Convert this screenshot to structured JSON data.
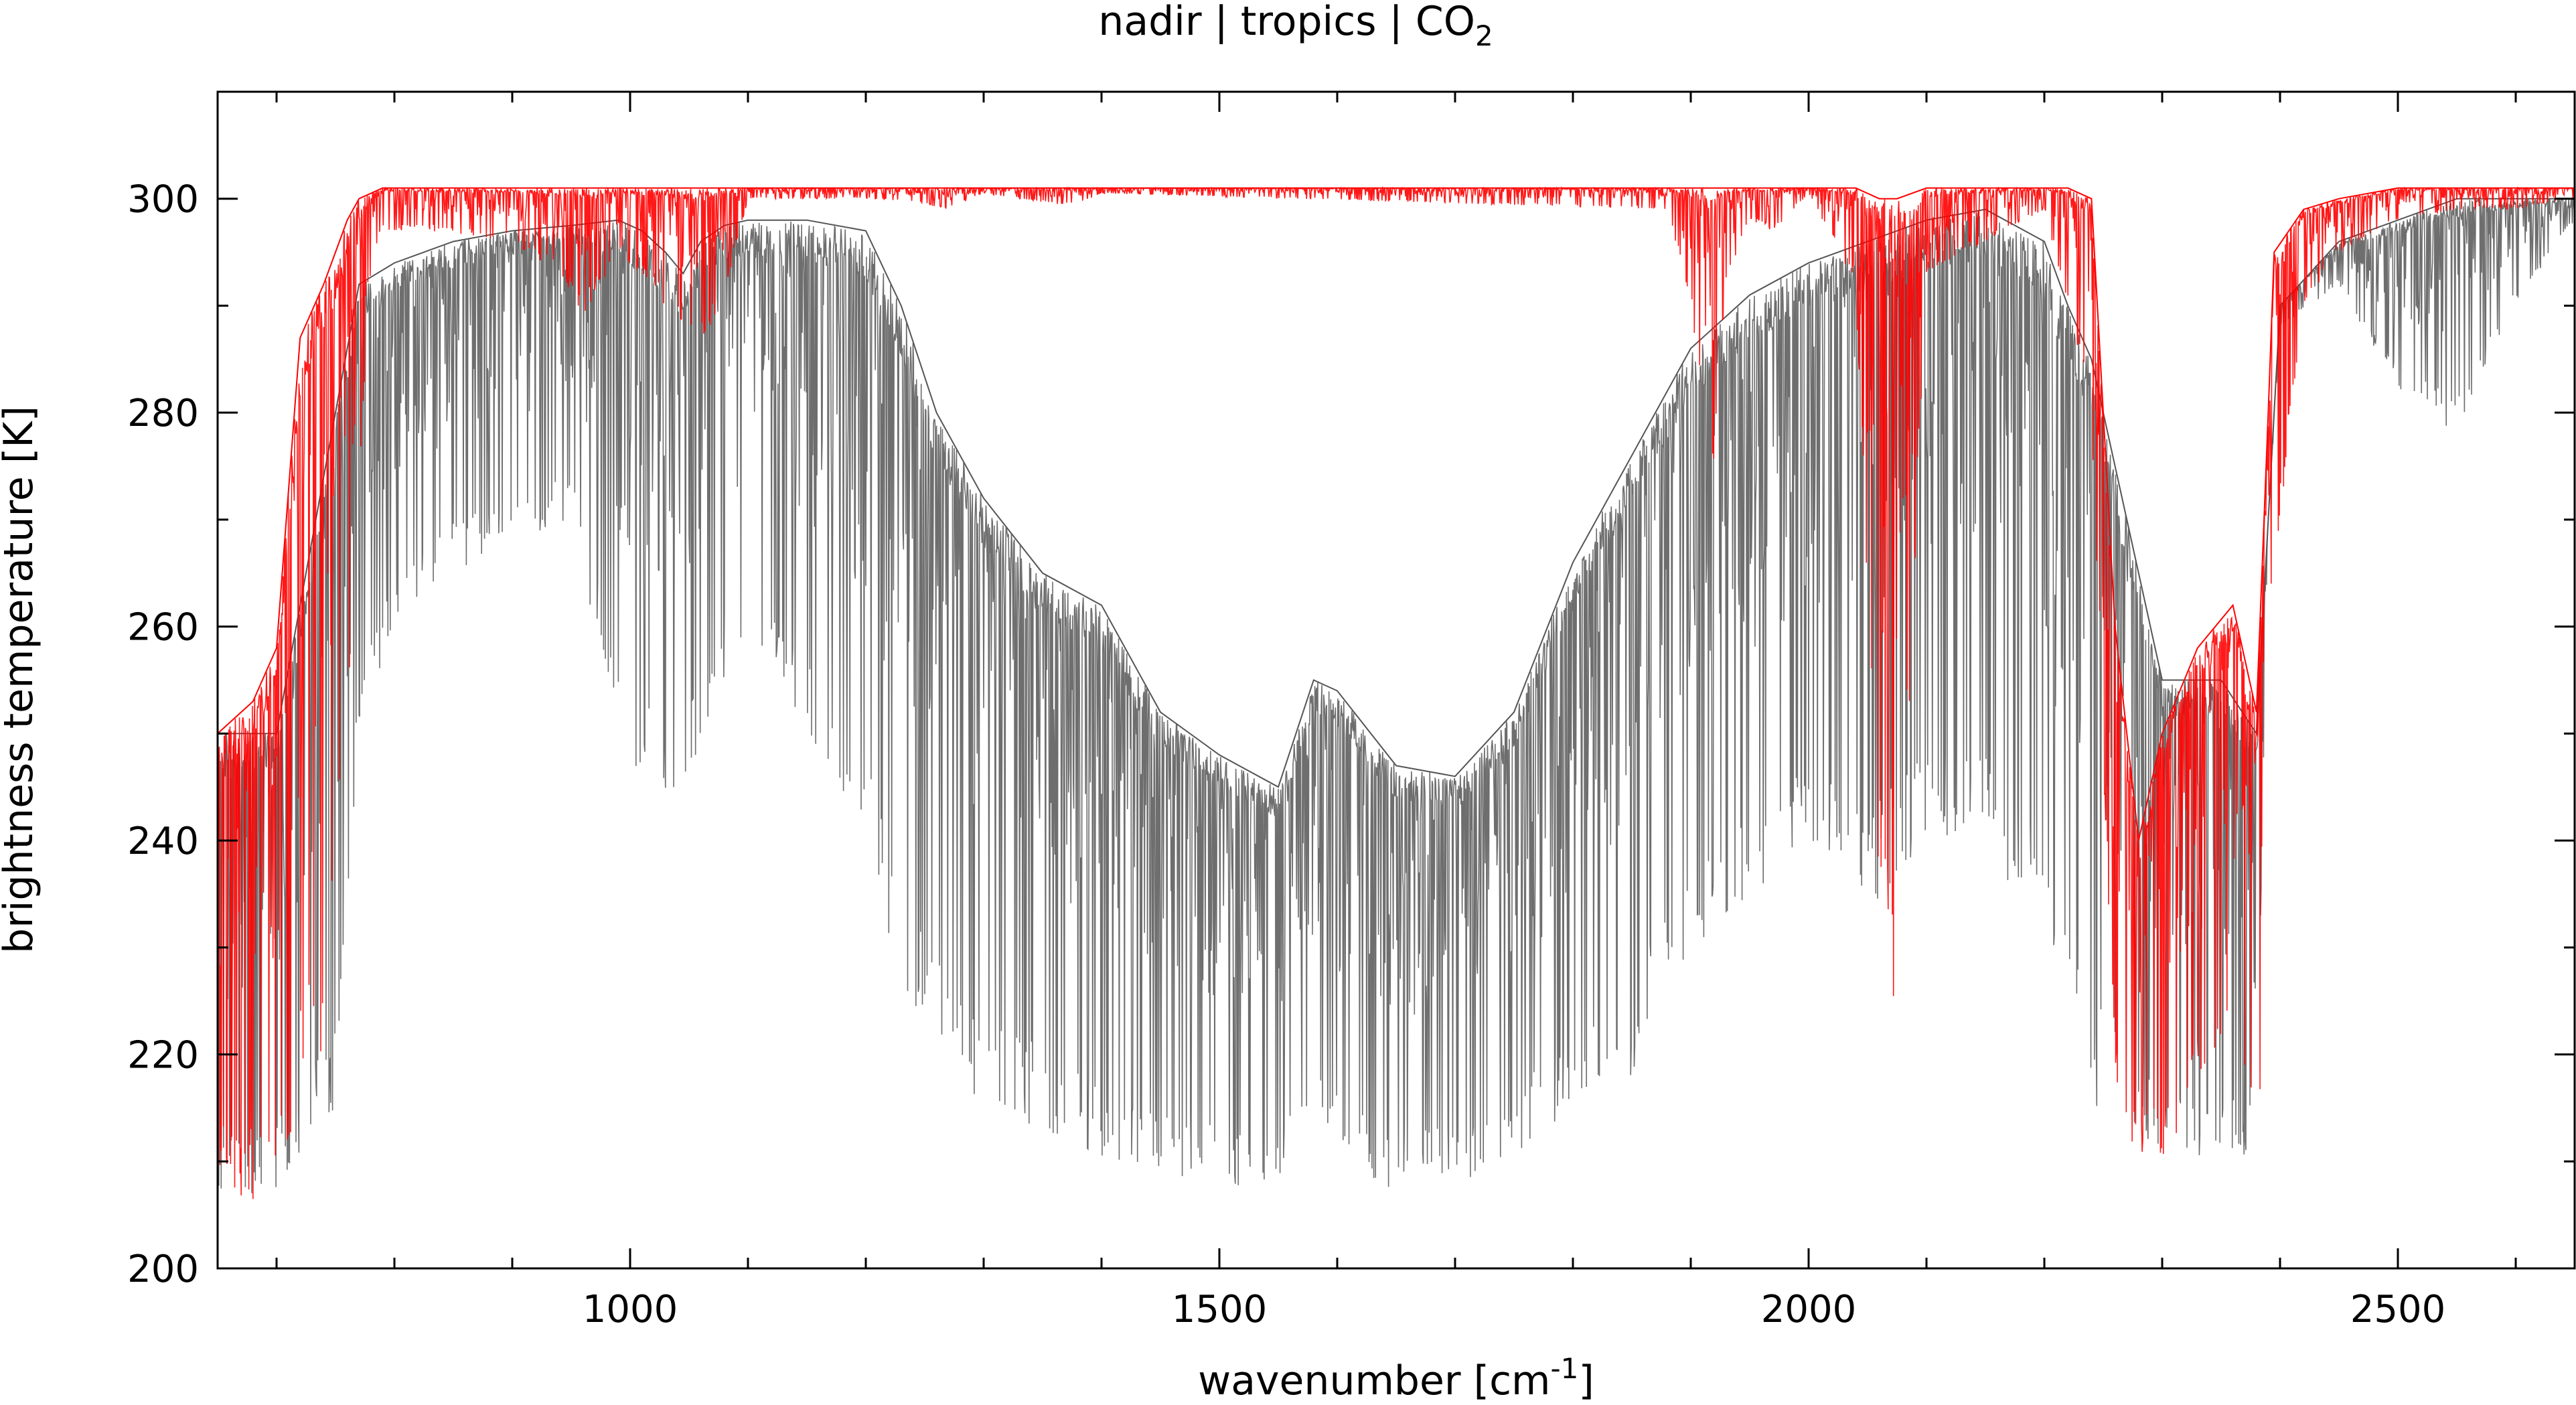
{
  "chart_data": {
    "type": "line",
    "title": "nadir | tropics | CO",
    "title_subscript": "2",
    "xlabel": "wavenumber [cm",
    "xlabel_superscript": "-1",
    "xlabel_suffix": "]",
    "ylabel": "brightness temperature [K]",
    "xlim": [
      650,
      2650
    ],
    "ylim": [
      200,
      310
    ],
    "xticks": [
      1000,
      1500,
      2000,
      2500
    ],
    "yticks": [
      200,
      220,
      240,
      260,
      280,
      300
    ],
    "grid": false,
    "legend": "none",
    "series": [
      {
        "color": "#555555",
        "style": "dense absorption spectrum",
        "x": [
          650,
          700,
          750,
          770,
          800,
          850,
          900,
          950,
          990,
          1010,
          1030,
          1045,
          1060,
          1080,
          1100,
          1150,
          1200,
          1230,
          1260,
          1300,
          1350,
          1400,
          1450,
          1500,
          1550,
          1580,
          1600,
          1650,
          1700,
          1750,
          1800,
          1850,
          1900,
          1950,
          2000,
          2050,
          2100,
          2150,
          2200,
          2220,
          2240,
          2300,
          2350,
          2380,
          2390,
          2400,
          2450,
          2500,
          2550,
          2600,
          2650
        ],
        "upper": [
          250,
          250,
          280,
          292,
          294,
          296,
          297,
          297.5,
          298,
          297,
          295,
          293,
          296,
          297.5,
          298,
          298,
          297,
          290,
          280,
          272,
          265,
          262,
          252,
          248,
          245,
          255,
          254,
          247,
          246,
          252,
          266,
          276,
          286,
          291,
          294,
          296,
          298,
          299,
          296,
          290,
          285,
          255,
          255,
          250,
          270,
          290,
          296,
          298,
          300,
          300,
          300
        ],
        "lower": [
          207,
          207,
          215,
          250,
          260,
          265,
          268,
          270,
          250,
          245,
          244,
          244,
          248,
          255,
          257,
          250,
          240,
          225,
          220,
          215,
          213,
          210,
          209,
          208,
          207,
          212,
          210,
          207,
          208,
          210,
          215,
          218,
          230,
          233,
          240,
          233,
          240,
          240,
          230,
          220,
          215,
          210,
          210,
          210,
          270,
          288,
          292,
          282,
          278,
          290,
          298
        ]
      },
      {
        "color": "#ff0000",
        "style": "dense absorption spectrum",
        "x": [
          650,
          680,
          700,
          720,
          740,
          760,
          770,
          790,
          830,
          900,
          940,
          960,
          990,
          1030,
          1060,
          1080,
          1100,
          1200,
          1250,
          1270,
          1300,
          1360,
          1380,
          1400,
          1880,
          1900,
          1910,
          1920,
          1930,
          1950,
          1970,
          2000,
          2040,
          2060,
          2075,
          2100,
          2150,
          2200,
          2220,
          2240,
          2260,
          2280,
          2300,
          2330,
          2360,
          2380,
          2390,
          2395,
          2420,
          2450,
          2500,
          2550,
          2600,
          2650
        ],
        "upper": [
          250,
          253,
          258,
          287,
          292,
          298,
          300,
          301,
          301,
          301,
          301,
          301,
          301,
          301,
          301,
          301,
          301,
          301,
          301,
          301,
          301,
          301,
          301,
          301,
          301,
          301,
          301,
          301,
          301,
          301,
          301,
          301,
          301,
          300,
          300,
          301,
          301,
          301,
          301,
          300,
          260,
          240,
          250,
          258,
          262,
          252,
          280,
          295,
          299,
          300,
          301,
          301,
          301,
          301
        ],
        "lower": [
          207,
          206,
          207,
          215,
          220,
          245,
          275,
          297,
          297,
          296,
          293,
          289,
          295,
          290,
          286,
          291,
          300,
          300,
          299.5,
          299,
          300.5,
          299.5,
          299.5,
          300.5,
          299,
          290,
          279,
          275,
          292,
          298,
          297,
          300.5,
          292,
          233,
          223,
          293,
          296,
          299,
          290,
          280,
          215,
          209,
          210,
          216,
          220,
          211,
          225,
          265,
          290,
          295,
          298,
          299,
          299,
          300
        ]
      }
    ]
  }
}
